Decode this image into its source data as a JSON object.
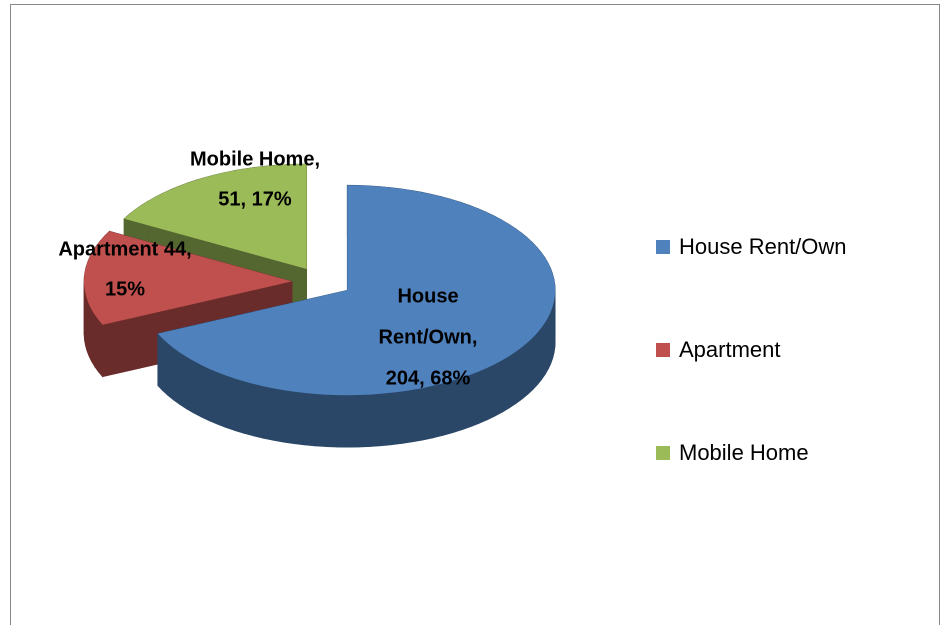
{
  "chart_data": {
    "type": "pie",
    "categories": [
      "House Rent/Own",
      "Apartment",
      "Mobile Home"
    ],
    "values": [
      204,
      44,
      51
    ],
    "value_labels": [
      [
        "House",
        "Rent/Own,",
        "204, 68%"
      ],
      [
        "Apartment 44,",
        "15%"
      ],
      [
        "Mobile Home,",
        "51, 17%"
      ]
    ],
    "colors": [
      "#4f81bd",
      "#c0504d",
      "#9bbb59"
    ],
    "legend": "right"
  }
}
